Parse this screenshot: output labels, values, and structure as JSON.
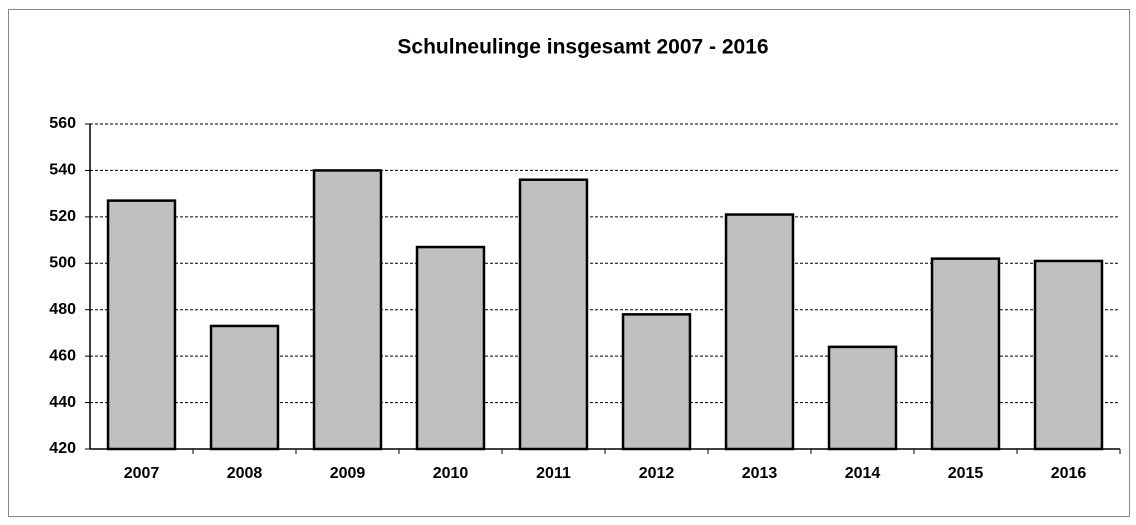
{
  "chart_data": {
    "type": "bar",
    "title": "Schulneulinge insgesamt 2007 - 2016",
    "categories": [
      "2007",
      "2008",
      "2009",
      "2010",
      "2011",
      "2012",
      "2013",
      "2014",
      "2015",
      "2016"
    ],
    "values": [
      527,
      473,
      540,
      507,
      536,
      478,
      521,
      464,
      502,
      501
    ],
    "color": "#c0c0c0",
    "ylim": [
      420,
      560
    ],
    "yticks": [
      420,
      440,
      460,
      480,
      500,
      520,
      540,
      560
    ],
    "grid": true
  }
}
